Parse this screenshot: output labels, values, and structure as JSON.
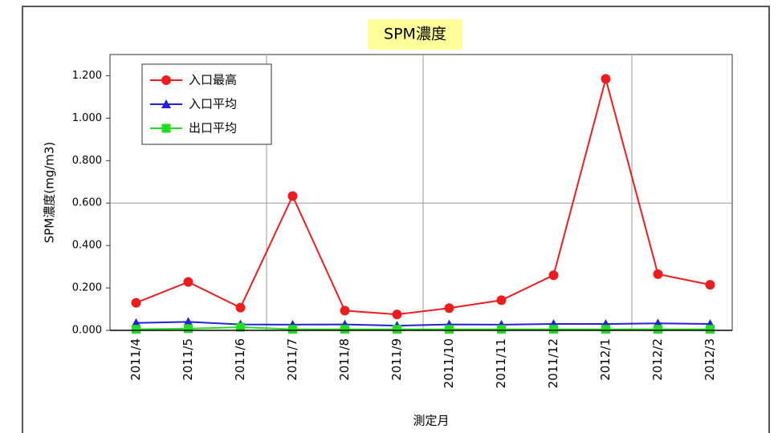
{
  "chart_data": {
    "type": "line",
    "title": "SPM濃度",
    "xlabel": "測定月",
    "ylabel": "SPM濃度(mg/m3)",
    "categories": [
      "2011/4",
      "2011/5",
      "2011/6",
      "2011/7",
      "2011/8",
      "2011/9",
      "2011/10",
      "2011/11",
      "2011/12",
      "2012/1",
      "2012/2",
      "2012/3"
    ],
    "series": [
      {
        "name": "入口最高",
        "color": "#ee1c1c",
        "marker": "circle",
        "values": [
          0.13,
          0.228,
          0.107,
          0.633,
          0.093,
          0.075,
          0.105,
          0.142,
          0.26,
          1.185,
          0.265,
          0.215
        ]
      },
      {
        "name": "入口平均",
        "color": "#2222dd",
        "marker": "triangle",
        "values": [
          0.035,
          0.04,
          0.028,
          0.027,
          0.028,
          0.022,
          0.028,
          0.027,
          0.03,
          0.03,
          0.033,
          0.03
        ]
      },
      {
        "name": "出口平均",
        "color": "#22dd22",
        "marker": "square",
        "values": [
          0.005,
          0.008,
          0.015,
          0.005,
          0.005,
          0.005,
          0.005,
          0.005,
          0.005,
          0.005,
          0.005,
          0.005
        ]
      }
    ],
    "ylim": [
      0,
      1.3
    ],
    "yticks": [
      {
        "value": 0,
        "label": "0.000"
      },
      {
        "value": 0.2,
        "label": "0.200"
      },
      {
        "value": 0.4,
        "label": "0.400"
      },
      {
        "value": 0.6,
        "label": "0.600"
      },
      {
        "value": 0.8,
        "label": "0.800"
      },
      {
        "value": 1.0,
        "label": "1.000"
      },
      {
        "value": 1.2,
        "label": "1.200"
      }
    ],
    "legend": "upper left"
  }
}
